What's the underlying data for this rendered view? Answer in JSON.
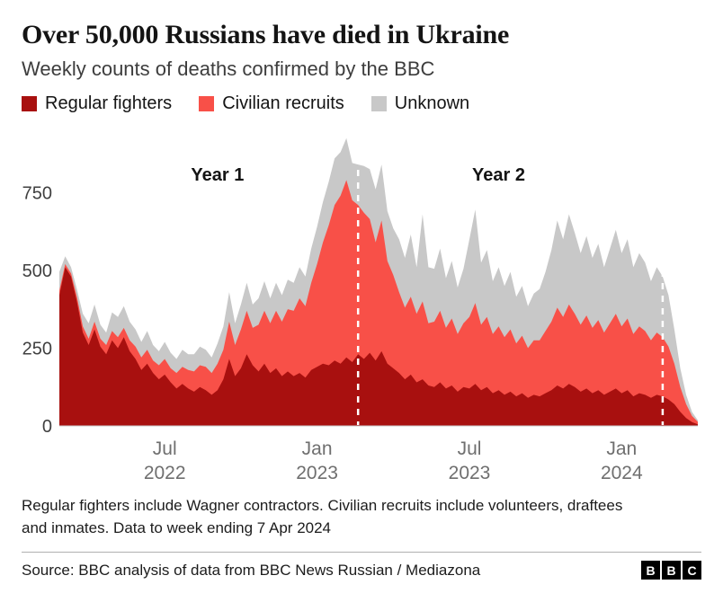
{
  "header": {
    "title": "Over 50,000 Russians have died in Ukraine",
    "subtitle": "Weekly counts of deaths confirmed by the BBC"
  },
  "chart_data": {
    "type": "area",
    "variant": "stacked",
    "title": "Over 50,000 Russians have died in Ukraine",
    "subtitle": "Weekly counts of deaths confirmed by the BBC",
    "x_unit": "week",
    "ylim": [
      0,
      950
    ],
    "yticks": [
      0,
      250,
      500,
      750
    ],
    "xticks": [
      {
        "line1": "Jul",
        "line2": "2022",
        "week": 18
      },
      {
        "line1": "Jan",
        "line2": "2023",
        "week": 44
      },
      {
        "line1": "Jul",
        "line2": "2023",
        "week": 70
      },
      {
        "line1": "Jan",
        "line2": "2024",
        "week": 96
      }
    ],
    "markers": [
      {
        "week": 51
      },
      {
        "week": 103
      }
    ],
    "marker_color": "#ffffff",
    "annotations": [
      {
        "text": "Year 1",
        "week": 27
      },
      {
        "text": "Year 2",
        "week": 75
      }
    ],
    "legend_position": "top",
    "grid": false,
    "series": [
      {
        "key": "regular",
        "name": "Regular fighters",
        "color": "#a8100f",
        "values": [
          420,
          510,
          480,
          400,
          300,
          260,
          310,
          255,
          230,
          275,
          250,
          285,
          240,
          215,
          180,
          200,
          170,
          150,
          165,
          140,
          120,
          135,
          120,
          110,
          125,
          115,
          100,
          115,
          150,
          215,
          160,
          185,
          230,
          195,
          175,
          200,
          170,
          185,
          160,
          175,
          160,
          170,
          155,
          180,
          190,
          200,
          195,
          210,
          200,
          220,
          205,
          230,
          215,
          235,
          210,
          240,
          200,
          185,
          170,
          150,
          165,
          140,
          150,
          130,
          125,
          140,
          120,
          130,
          110,
          125,
          120,
          135,
          115,
          125,
          105,
          115,
          100,
          110,
          95,
          105,
          90,
          100,
          95,
          105,
          115,
          130,
          120,
          135,
          125,
          110,
          120,
          105,
          115,
          100,
          110,
          120,
          105,
          115,
          95,
          105,
          100,
          90,
          100,
          95,
          85,
          70,
          45,
          25,
          12,
          5
        ]
      },
      {
        "key": "civilian",
        "name": "Civilian recruits",
        "color": "#f85048",
        "values": [
          15,
          10,
          10,
          15,
          20,
          20,
          25,
          25,
          30,
          30,
          35,
          30,
          35,
          40,
          40,
          45,
          40,
          45,
          50,
          45,
          50,
          55,
          60,
          65,
          70,
          75,
          70,
          85,
          95,
          120,
          100,
          125,
          140,
          120,
          150,
          170,
          160,
          185,
          175,
          200,
          210,
          240,
          230,
          280,
          330,
          390,
          450,
          500,
          540,
          570,
          520,
          480,
          470,
          430,
          380,
          420,
          330,
          300,
          260,
          230,
          250,
          220,
          250,
          200,
          210,
          230,
          195,
          215,
          185,
          205,
          230,
          260,
          210,
          225,
          190,
          205,
          185,
          200,
          170,
          185,
          160,
          175,
          180,
          200,
          220,
          250,
          230,
          255,
          235,
          215,
          235,
          210,
          225,
          200,
          220,
          240,
          215,
          230,
          200,
          215,
          205,
          185,
          200,
          190,
          170,
          130,
          80,
          45,
          20,
          8
        ]
      },
      {
        "key": "unknown",
        "name": "Unknown",
        "color": "#c8c8c8",
        "values": [
          60,
          25,
          20,
          25,
          40,
          50,
          55,
          45,
          40,
          60,
          65,
          70,
          60,
          55,
          50,
          60,
          50,
          45,
          55,
          50,
          45,
          55,
          50,
          55,
          60,
          55,
          50,
          65,
          75,
          95,
          70,
          80,
          90,
          75,
          85,
          95,
          80,
          90,
          85,
          95,
          90,
          100,
          95,
          110,
          120,
          130,
          140,
          150,
          140,
          135,
          120,
          130,
          150,
          160,
          170,
          180,
          160,
          150,
          170,
          160,
          200,
          150,
          280,
          180,
          170,
          200,
          160,
          185,
          150,
          175,
          250,
          300,
          200,
          215,
          170,
          190,
          165,
          185,
          150,
          160,
          135,
          150,
          165,
          190,
          230,
          280,
          250,
          290,
          260,
          230,
          255,
          225,
          245,
          210,
          240,
          270,
          235,
          255,
          215,
          235,
          220,
          190,
          210,
          195,
          165,
          110,
          60,
          30,
          13,
          5
        ]
      }
    ]
  },
  "footer": {
    "footnote": "Regular fighters include Wagner contractors. Civilian recruits include volunteers, draftees and inmates. Data to week ending 7 Apr 2024",
    "source": "Source: BBC analysis of data from BBC News Russian / Mediazona",
    "logo": [
      "B",
      "B",
      "C"
    ]
  }
}
